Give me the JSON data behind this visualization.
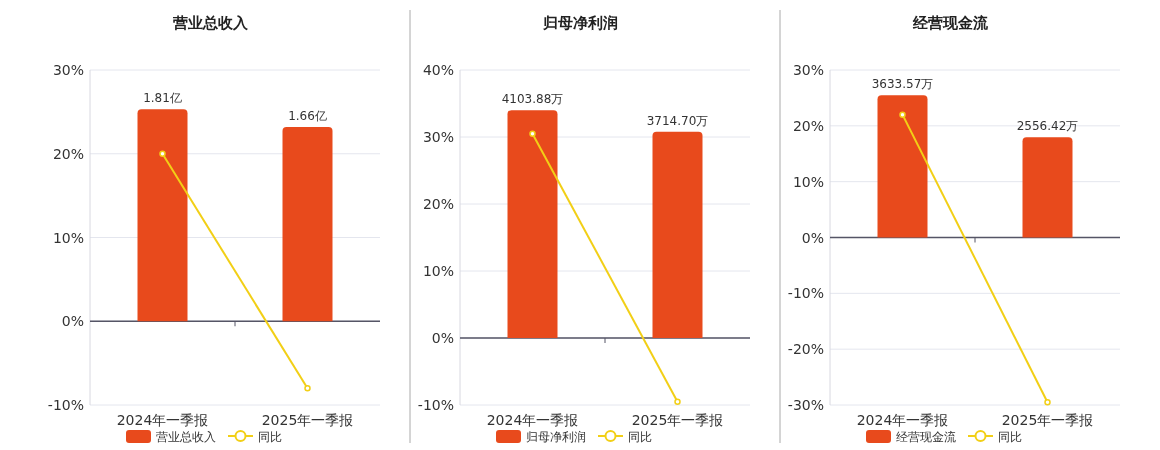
{
  "chart_data": [
    {
      "type": "bar",
      "title": "营业总收入",
      "categories": [
        "2024年一季报",
        "2025年一季报"
      ],
      "ylim": [
        -10,
        30
      ],
      "yticks": [
        {
          "value": -10,
          "label": "-10%"
        },
        {
          "value": 0,
          "label": "0%"
        },
        {
          "value": 10,
          "label": "10%"
        },
        {
          "value": 20,
          "label": "20%"
        },
        {
          "value": 30,
          "label": "30%"
        }
      ],
      "y2lim": [
        -0.715,
        2.146
      ],
      "grid": "y",
      "legend": "bottom",
      "marker": "circle",
      "series": [
        {
          "name": "营业总收入",
          "axis": "y2",
          "color": "#e84a1c",
          "values": [
            1.81,
            1.66
          ],
          "value_labels": [
            "1.81亿",
            "1.66亿"
          ]
        },
        {
          "name": "同比",
          "type": "line",
          "color": "#f2cf16",
          "values": [
            20,
            -8
          ]
        }
      ]
    },
    {
      "type": "bar",
      "title": "归母净利润",
      "categories": [
        "2024年一季报",
        "2025年一季报"
      ],
      "ylim": [
        -10,
        40
      ],
      "yticks": [
        {
          "value": -10,
          "label": "-10%"
        },
        {
          "value": 0,
          "label": "0%"
        },
        {
          "value": 10,
          "label": "10%"
        },
        {
          "value": 20,
          "label": "20%"
        },
        {
          "value": 30,
          "label": "30%"
        },
        {
          "value": 40,
          "label": "40%"
        }
      ],
      "y2lim": [
        -1207,
        4828
      ],
      "grid": "y",
      "legend": "bottom",
      "marker": "circle",
      "series": [
        {
          "name": "归母净利润",
          "axis": "y2",
          "color": "#e84a1c",
          "values": [
            4103.88,
            3714.7
          ],
          "value_labels": [
            "4103.88万",
            "3714.70万"
          ]
        },
        {
          "name": "同比",
          "type": "line",
          "color": "#f2cf16",
          "values": [
            30.5,
            -9.5
          ]
        }
      ]
    },
    {
      "type": "bar",
      "title": "经营现金流",
      "categories": [
        "2024年一季报",
        "2025年一季报"
      ],
      "ylim": [
        -30,
        30
      ],
      "yticks": [
        {
          "value": -30,
          "label": "-30%"
        },
        {
          "value": -20,
          "label": "-20%"
        },
        {
          "value": -10,
          "label": "-10%"
        },
        {
          "value": 0,
          "label": "0%"
        },
        {
          "value": 10,
          "label": "10%"
        },
        {
          "value": 20,
          "label": "20%"
        },
        {
          "value": 30,
          "label": "30%"
        }
      ],
      "y2lim": [
        -4275,
        4275
      ],
      "grid": "y",
      "legend": "bottom",
      "marker": "circle",
      "series": [
        {
          "name": "经营现金流",
          "axis": "y2",
          "color": "#e84a1c",
          "values": [
            3633.57,
            2556.42
          ],
          "value_labels": [
            "3633.57万",
            "2556.42万"
          ]
        },
        {
          "name": "同比",
          "type": "line",
          "color": "#f2cf16",
          "values": [
            22,
            -29.5
          ]
        }
      ]
    }
  ]
}
